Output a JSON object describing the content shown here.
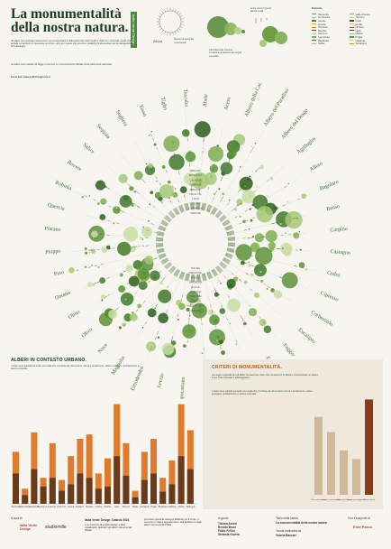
{
  "header": {
    "title": "La monumentalità della nostra natura.",
    "tag": "Italia Verde Design",
    "intro": "Gli alberi monumentali costituiscono una testimonianza della storia dei nostri luoghi e delle loro comunità; quello che accade sul territorio si ripercuote su di loro, ed è per questo che censirli e tutelarli è fondamentale per la salvaguardia del paesaggio.",
    "intro2": "Se alberi sono tutelati per legge e ricevono un riconoscimento ufficiale come patrimonio nazionale.",
    "fonte": "Fonte dati: www.politicheagricole.it"
  },
  "legend": {
    "genus_label": "Allora",
    "genus_note": "Numero di esemplari monumentali",
    "circle_title": "Circonferenza maxima",
    "circle_note": "in relazione ai parametri del singolo esemplare",
    "height_title": "Linee verso il centro",
    "height_note": "altezza media",
    "region_title": "Distretto",
    "regions": [
      "Piemonte",
      "Valle d'Aosta",
      "Lombardia",
      "Trentino",
      "Veneto",
      "Friuli",
      "Liguria",
      "Emilia",
      "Toscana",
      "Umbria",
      "Marche",
      "Lazio",
      "Abruzzo",
      "Molise",
      "Campania",
      "Puglia",
      "Basilicata",
      "Calabria",
      "Sicilia",
      "Sardegna"
    ],
    "region_colors": [
      "#6e9c3a",
      "#8bb04a",
      "#a6c25d",
      "#bcd172",
      "#4f7d2a",
      "#2f5a1d",
      "#d7a14a",
      "#e0b55e",
      "#c77b2e",
      "#a8592b",
      "#8a3f22",
      "#6a2f1a",
      "#b8d4a0",
      "#9dc48a",
      "#7fae6d",
      "#5f9553",
      "#437a3c",
      "#e5c98b",
      "#d3ad6a",
      "#b98b47"
    ]
  },
  "wheel": {
    "genera": [
      "Abete",
      "Acero",
      "Albero della Canfora",
      "Albero del Paradiso",
      "Albero del Drago",
      "Agrifoglio",
      "Alloro",
      "Bagolaro",
      "Bosso",
      "Carpino",
      "Castagno",
      "Cedro",
      "Cipresso",
      "Corbezzolo",
      "Eucalipto",
      "Faggio",
      "Farnia",
      "Frassino",
      "Gelso",
      "Ginkgo",
      "Ippocastano",
      "Leccio",
      "Liriodendro",
      "Magnolia",
      "Noce",
      "Olivo",
      "Olmo",
      "Ontano",
      "Pino",
      "Pioppo",
      "Platano",
      "Quercia",
      "Robinia",
      "Rovere",
      "Salice",
      "Sequoia",
      "Sughera",
      "Tasso",
      "Tiglio",
      "Taxodio"
    ],
    "regions_inner": [
      "ABRUZZO",
      "BASILICATA",
      "CALABRIA",
      "CAMPANIA",
      "EMILIA R.",
      "FRIULI V.G.",
      "LAZIO",
      "LIGURIA",
      "LOMBARDIA",
      "MARCHE",
      "MOLISE",
      "PIEMONTE",
      "PUGLIA",
      "SARDEGNA",
      "SICILIA",
      "TOSCANA",
      "TRENTINO",
      "UMBRIA",
      "VALLE D'AOSTA",
      "VENETO"
    ]
  },
  "chart_data": {
    "type": "bar",
    "title": "ALBERI IN CONTESTO URBANO.",
    "categories": [
      "Piemonte",
      "Valle d'Aosta",
      "Lombardia",
      "Trentino A.A.",
      "Veneto",
      "Friuli V.G.",
      "Liguria",
      "Emilia R.",
      "Toscana",
      "Umbria",
      "Marche",
      "Lazio",
      "Abruzzo",
      "Molise",
      "Campania",
      "Puglia",
      "Basilicata",
      "Calabria",
      "Sicilia",
      "Sardegna"
    ],
    "series": [
      {
        "name": "Urbano",
        "values": [
          120,
          35,
          165,
          60,
          140,
          55,
          110,
          150,
          160,
          70,
          105,
          230,
          140,
          30,
          120,
          150,
          60,
          100,
          230,
          170
        ]
      },
      {
        "name": "Extra urbano",
        "values": [
          70,
          20,
          80,
          40,
          60,
          30,
          45,
          70,
          60,
          35,
          40,
          110,
          65,
          15,
          55,
          70,
          28,
          45,
          110,
          80
        ]
      }
    ],
    "ylim": [
      0,
      250
    ]
  },
  "criteria": {
    "title": "CRITERI DI MONUMENTALITÀ.",
    "text1": "La Legge regionale per gli alberi ha posto dei criteri che consentono di definire monumentale un albero, il suo ruolo culturale e paesaggistico.",
    "text2": "I criteri sono valutati secondo una scala che combina età, dimensioni, forma e portamento, valore ecologico, architettonico e storico-culturale.",
    "items": [
      {
        "label": "Età e dimensioni",
        "value": 72
      },
      {
        "label": "Forma e portamento",
        "value": 58
      },
      {
        "label": "Valore ecologico",
        "value": 41
      },
      {
        "label": "Pregio paesaggistico",
        "value": 33
      },
      {
        "label": "Valore storico",
        "value": 88
      }
    ]
  },
  "footer": {
    "cura_label": "A cura di",
    "logo1": "Italia Verde Design",
    "logo2": "studiomille",
    "col1_title": "Italia Verde Design: Dataviz 2024",
    "col1_text": "è un concorso di progetti design e data visualization dedicato agli alberi monumentali d'Italia.",
    "col2_text": "promosso grazie al sostegno dell'Ente per il Verde. Il concorso è volto a rappresentare i dati dell'Elenco degli alberi monumentali d'Italia.",
    "giuria_label": "In giuria",
    "giuria": [
      "Tiziana Alessi",
      "Renato Bruni",
      "Fabio Fellini",
      "Stefania Guerra"
    ],
    "work_title_label": "Titolo della tavola",
    "work_title": "La monumentalità della nostra natura",
    "author_label": "Tavola realizzata da",
    "author": "Valeria Baccari",
    "sponsor_label": "Con il supporto di",
    "sponsor": "Ente Parco"
  }
}
